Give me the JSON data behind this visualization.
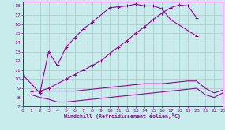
{
  "background_color": "#c8ecec",
  "grid_color": "#b0cccc",
  "line_color": "#990099",
  "xlabel": "Windchill (Refroidissement éolien,°C)",
  "xlim": [
    0,
    23
  ],
  "ylim": [
    7,
    18.5
  ],
  "xticks": [
    0,
    1,
    2,
    3,
    4,
    5,
    6,
    7,
    8,
    9,
    10,
    11,
    12,
    13,
    14,
    15,
    16,
    17,
    18,
    19,
    20,
    21,
    22,
    23
  ],
  "yticks": [
    7,
    8,
    9,
    10,
    11,
    12,
    13,
    14,
    15,
    16,
    17,
    18
  ],
  "curve1_x": [
    0,
    1,
    2,
    3,
    4,
    5,
    6,
    7,
    8,
    10,
    11,
    12,
    13,
    14,
    15,
    16,
    17,
    20
  ],
  "curve1_y": [
    10.5,
    9.5,
    8.5,
    13.0,
    11.5,
    13.5,
    14.5,
    15.5,
    16.2,
    17.8,
    17.9,
    18.0,
    18.2,
    18.0,
    18.0,
    17.7,
    16.5,
    14.7
  ],
  "curve2_x": [
    1,
    2,
    3,
    4,
    5,
    6,
    7,
    8,
    9,
    10,
    11,
    12,
    13,
    14,
    15,
    16,
    17,
    18,
    19,
    20
  ],
  "curve2_y": [
    8.7,
    8.7,
    9.0,
    9.5,
    10.0,
    10.5,
    11.0,
    11.5,
    12.0,
    12.8,
    13.5,
    14.2,
    15.0,
    15.7,
    16.5,
    17.2,
    17.8,
    18.1,
    18.0,
    16.7
  ],
  "curve3_x": [
    1,
    2,
    3,
    4,
    5,
    6,
    7,
    8,
    9,
    10,
    11,
    12,
    13,
    14,
    15,
    16,
    17,
    18,
    19,
    20,
    21,
    22,
    23
  ],
  "curve3_y": [
    8.7,
    8.7,
    8.7,
    8.7,
    8.7,
    8.7,
    8.8,
    8.9,
    9.0,
    9.1,
    9.2,
    9.3,
    9.4,
    9.5,
    9.5,
    9.5,
    9.6,
    9.7,
    9.8,
    9.8,
    9.0,
    8.5,
    8.8
  ],
  "curve4_x": [
    1,
    2,
    3,
    4,
    5,
    6,
    7,
    8,
    9,
    10,
    11,
    12,
    13,
    14,
    15,
    16,
    17,
    18,
    19,
    20,
    21,
    22,
    23
  ],
  "curve4_y": [
    8.3,
    8.0,
    7.8,
    7.5,
    7.5,
    7.6,
    7.7,
    7.8,
    7.9,
    8.0,
    8.1,
    8.2,
    8.3,
    8.4,
    8.5,
    8.6,
    8.7,
    8.8,
    8.9,
    9.0,
    8.3,
    8.0,
    8.5
  ],
  "figwidth": 2.85,
  "figheight": 1.65,
  "dpi": 100
}
